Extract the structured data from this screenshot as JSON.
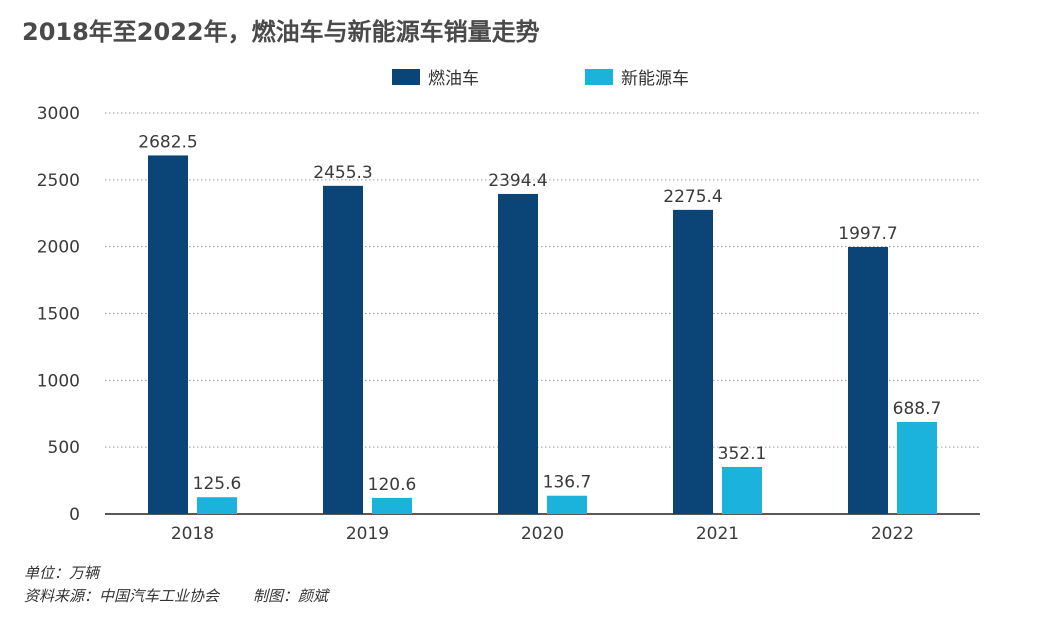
{
  "title": "2018年至2022年，燃油车与新能源车销量走势",
  "colors": {
    "fuel": "#0b4577",
    "nev": "#1bb2dc",
    "grid": "#9a9a9a",
    "axis": "#222222",
    "label": "#3a3a3a"
  },
  "chart_data": {
    "type": "bar",
    "title": "2018年至2022年，燃油车与新能源车销量走势",
    "categories": [
      "2018",
      "2019",
      "2020",
      "2021",
      "2022"
    ],
    "series": [
      {
        "name": "燃油车",
        "values": [
          2682.5,
          2455.3,
          2394.4,
          2275.4,
          1997.7
        ],
        "value_labels": [
          "2682.5",
          "2455.3",
          "2394.4",
          "2275.4",
          "1997.7"
        ]
      },
      {
        "name": "新能源车",
        "values": [
          125.6,
          120.6,
          136.7,
          352.1,
          688.7
        ],
        "value_labels": [
          "125.6",
          "120.6",
          "136.7",
          "352.1",
          "688.7"
        ]
      }
    ],
    "ylim": [
      0,
      3000
    ],
    "yticks": [
      0,
      500,
      1000,
      1500,
      2000,
      2500,
      3000
    ],
    "ytick_labels": [
      "0",
      "500",
      "1000",
      "1500",
      "2000",
      "2500",
      "3000"
    ],
    "grid": "horizontal dotted",
    "legend_position": "top-center"
  },
  "footer": {
    "unit": "单位：万辆",
    "source": "资料来源：中国汽车工业协会",
    "credit": "制图：颜斌"
  }
}
